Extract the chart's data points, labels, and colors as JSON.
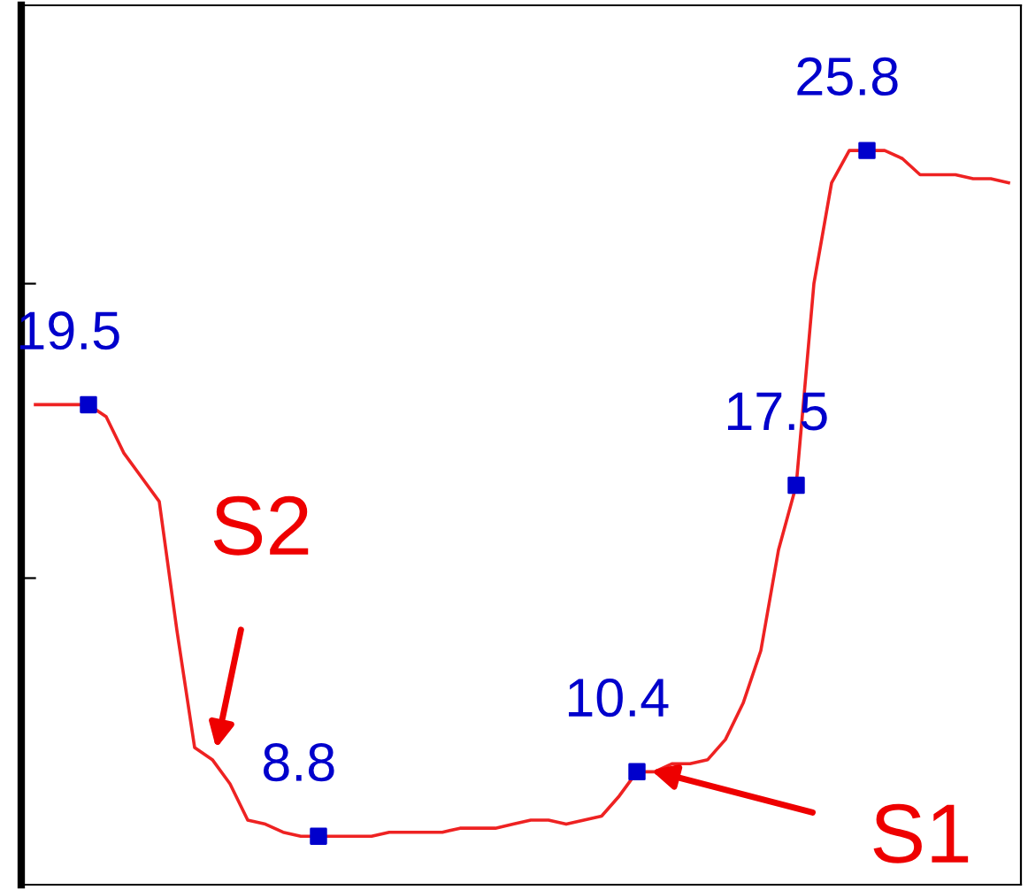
{
  "chart_data": {
    "type": "line",
    "categories": [
      null,
      null,
      null,
      null,
      null,
      null,
      null,
      null,
      null,
      null,
      null,
      null,
      null,
      null,
      null,
      null,
      null,
      null,
      null,
      null,
      null,
      null,
      null,
      null,
      null,
      null,
      null,
      null,
      null,
      null,
      null,
      null,
      null,
      null,
      null,
      null,
      null,
      null,
      null,
      null,
      null,
      null,
      null,
      null,
      null,
      null,
      null,
      null,
      null,
      null,
      null,
      null,
      null,
      null,
      null,
      null
    ],
    "series": [
      {
        "color": "#ee2222",
        "values": [
          19.5,
          19.5,
          19.5,
          19.5,
          19.2,
          18.3,
          17.7,
          17.1,
          13.9,
          11.0,
          10.7,
          10.1,
          9.2,
          9.1,
          8.9,
          8.8,
          8.8,
          8.8,
          8.8,
          8.8,
          8.9,
          8.9,
          8.9,
          8.9,
          9.0,
          9.0,
          9.0,
          9.1,
          9.2,
          9.2,
          9.1,
          9.2,
          9.3,
          9.8,
          10.4,
          10.4,
          10.6,
          10.6,
          10.7,
          11.2,
          12.1,
          13.4,
          15.9,
          17.5,
          22.5,
          25.0,
          25.8,
          25.8,
          25.8,
          25.6,
          25.2,
          25.2,
          25.2,
          25.1,
          25.1,
          25.0
        ],
        "value_labels": [
          null,
          null,
          null,
          "19.5",
          null,
          null,
          null,
          null,
          null,
          null,
          null,
          null,
          null,
          null,
          null,
          null,
          "8.8",
          null,
          null,
          null,
          null,
          null,
          null,
          null,
          null,
          null,
          null,
          null,
          null,
          null,
          null,
          null,
          null,
          null,
          "10.4",
          null,
          null,
          null,
          null,
          null,
          null,
          null,
          null,
          "17.5",
          null,
          null,
          null,
          "25.8",
          null,
          null,
          null,
          null,
          null,
          null,
          null,
          null
        ]
      }
    ],
    "ylim": [
      7.6,
      29.4
    ],
    "yticks": [
      {
        "value": 15.2,
        "label": null
      },
      {
        "value": 22.5,
        "label": null
      }
    ],
    "tick_labels": false,
    "annotations": [
      "S2",
      "S1"
    ]
  }
}
